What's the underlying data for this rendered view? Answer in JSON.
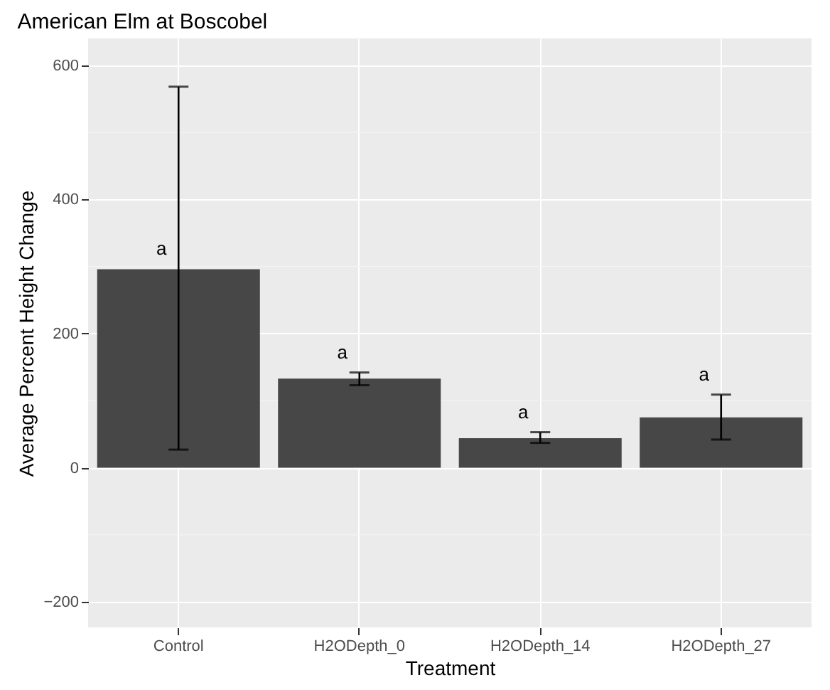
{
  "chart_data": {
    "type": "bar",
    "title": "American Elm at Boscobel",
    "xlabel": "Treatment",
    "ylabel": "Average Percent Height Change",
    "categories": [
      "Control",
      "H2ODepth_0",
      "H2ODepth_14",
      "H2ODepth_27"
    ],
    "values": [
      296,
      133,
      44,
      75
    ],
    "errors": [
      [
        27,
        568
      ],
      [
        123,
        142
      ],
      [
        37,
        53
      ],
      [
        42,
        109
      ]
    ],
    "color": "#474747",
    "ylim": [
      -238,
      640
    ],
    "yticks": [
      -200,
      0,
      200,
      400,
      600
    ],
    "grid": true,
    "annotations": [
      {
        "text": "a",
        "x": "Control",
        "y": 296
      },
      {
        "text": "a",
        "x": "H2ODepth_0",
        "y": 142
      },
      {
        "text": "a",
        "x": "H2ODepth_14",
        "y": 53
      },
      {
        "text": "a",
        "x": "H2ODepth_27",
        "y": 109
      }
    ]
  }
}
